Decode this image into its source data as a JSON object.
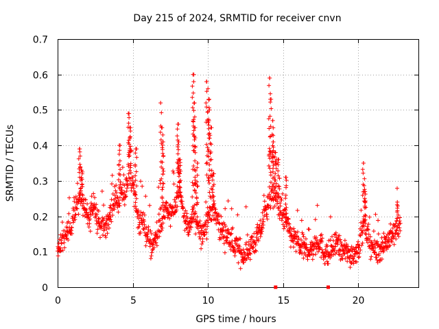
{
  "chart_data": {
    "type": "scatter",
    "title": "Day 215 of 2024, SRMTID for receiver cnvn",
    "xlabel": "GPS time / hours",
    "ylabel": "SRMTID / TECUs",
    "xlim": [
      0,
      24
    ],
    "ylim": [
      0,
      0.7
    ],
    "xticks": [
      "0",
      "5",
      "10",
      "15",
      "20"
    ],
    "yticks": [
      "0",
      "0.1",
      "0.2",
      "0.3",
      "0.4",
      "0.5",
      "0.6",
      "0.7"
    ],
    "grid": true,
    "marker": "+",
    "color": "#ff0000",
    "zero_markers_x": [
      14.5,
      18.0
    ],
    "trend": [
      [
        0.0,
        0.1
      ],
      [
        0.3,
        0.13
      ],
      [
        0.6,
        0.16
      ],
      [
        0.9,
        0.17
      ],
      [
        1.2,
        0.22
      ],
      [
        1.5,
        0.27
      ],
      [
        1.8,
        0.22
      ],
      [
        2.1,
        0.19
      ],
      [
        2.4,
        0.24
      ],
      [
        2.7,
        0.18
      ],
      [
        3.0,
        0.19
      ],
      [
        3.3,
        0.18
      ],
      [
        3.6,
        0.22
      ],
      [
        3.9,
        0.26
      ],
      [
        4.2,
        0.25
      ],
      [
        4.5,
        0.27
      ],
      [
        4.8,
        0.33
      ],
      [
        5.1,
        0.25
      ],
      [
        5.4,
        0.19
      ],
      [
        5.7,
        0.18
      ],
      [
        6.0,
        0.13
      ],
      [
        6.3,
        0.12
      ],
      [
        6.6,
        0.15
      ],
      [
        6.9,
        0.19
      ],
      [
        7.2,
        0.22
      ],
      [
        7.5,
        0.2
      ],
      [
        7.8,
        0.23
      ],
      [
        8.1,
        0.27
      ],
      [
        8.4,
        0.21
      ],
      [
        8.7,
        0.16
      ],
      [
        9.0,
        0.21
      ],
      [
        9.3,
        0.17
      ],
      [
        9.6,
        0.14
      ],
      [
        9.9,
        0.19
      ],
      [
        10.2,
        0.22
      ],
      [
        10.5,
        0.21
      ],
      [
        10.8,
        0.17
      ],
      [
        11.1,
        0.15
      ],
      [
        11.4,
        0.14
      ],
      [
        11.7,
        0.12
      ],
      [
        12.0,
        0.11
      ],
      [
        12.3,
        0.09
      ],
      [
        12.6,
        0.1
      ],
      [
        12.9,
        0.12
      ],
      [
        13.2,
        0.13
      ],
      [
        13.5,
        0.16
      ],
      [
        13.8,
        0.21
      ],
      [
        14.1,
        0.25
      ],
      [
        14.4,
        0.26
      ],
      [
        14.7,
        0.24
      ],
      [
        15.0,
        0.2
      ],
      [
        15.3,
        0.17
      ],
      [
        15.6,
        0.14
      ],
      [
        15.9,
        0.13
      ],
      [
        16.2,
        0.11
      ],
      [
        16.5,
        0.11
      ],
      [
        16.8,
        0.1
      ],
      [
        17.1,
        0.12
      ],
      [
        17.4,
        0.13
      ],
      [
        17.7,
        0.1
      ],
      [
        18.0,
        0.09
      ],
      [
        18.3,
        0.11
      ],
      [
        18.6,
        0.12
      ],
      [
        18.9,
        0.1
      ],
      [
        19.2,
        0.1
      ],
      [
        19.5,
        0.09
      ],
      [
        19.8,
        0.1
      ],
      [
        20.1,
        0.12
      ],
      [
        20.4,
        0.18
      ],
      [
        20.7,
        0.13
      ],
      [
        21.0,
        0.11
      ],
      [
        21.3,
        0.1
      ],
      [
        21.6,
        0.12
      ],
      [
        21.9,
        0.13
      ],
      [
        22.2,
        0.14
      ],
      [
        22.5,
        0.16
      ],
      [
        22.8,
        0.17
      ]
    ],
    "peaks": [
      [
        1.45,
        0.39
      ],
      [
        1.6,
        0.33
      ],
      [
        4.1,
        0.4
      ],
      [
        4.75,
        0.49
      ],
      [
        4.85,
        0.45
      ],
      [
        5.2,
        0.39
      ],
      [
        6.85,
        0.52
      ],
      [
        6.95,
        0.45
      ],
      [
        7.0,
        0.41
      ],
      [
        8.0,
        0.46
      ],
      [
        8.05,
        0.41
      ],
      [
        8.15,
        0.36
      ],
      [
        9.0,
        0.6
      ],
      [
        9.05,
        0.58
      ],
      [
        9.1,
        0.52
      ],
      [
        9.15,
        0.45
      ],
      [
        9.3,
        0.35
      ],
      [
        9.9,
        0.58
      ],
      [
        10.0,
        0.56
      ],
      [
        10.05,
        0.53
      ],
      [
        10.1,
        0.5
      ],
      [
        10.2,
        0.45
      ],
      [
        10.35,
        0.32
      ],
      [
        14.1,
        0.59
      ],
      [
        14.15,
        0.53
      ],
      [
        14.3,
        0.47
      ],
      [
        14.35,
        0.41
      ],
      [
        14.5,
        0.38
      ],
      [
        14.7,
        0.36
      ],
      [
        15.2,
        0.31
      ],
      [
        20.35,
        0.35
      ],
      [
        20.45,
        0.27
      ],
      [
        22.6,
        0.24
      ]
    ],
    "n_points": 1380
  }
}
